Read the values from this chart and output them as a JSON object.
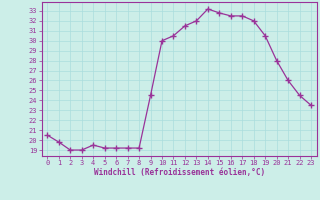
{
  "hours": [
    0,
    1,
    2,
    3,
    4,
    5,
    6,
    7,
    8,
    9,
    10,
    11,
    12,
    13,
    14,
    15,
    16,
    17,
    18,
    19,
    20,
    21,
    22,
    23
  ],
  "values": [
    20.5,
    19.8,
    19.0,
    19.0,
    19.5,
    19.2,
    19.2,
    19.2,
    19.2,
    24.5,
    30.0,
    30.5,
    31.5,
    32.0,
    33.2,
    32.8,
    32.5,
    32.5,
    32.0,
    30.5,
    28.0,
    26.0,
    24.5,
    23.5
  ],
  "line_color": "#993399",
  "marker": "+",
  "marker_size": 4,
  "bg_color": "#cceee8",
  "grid_color": "#aadddd",
  "xlabel": "Windchill (Refroidissement éolien,°C)",
  "ylabel_ticks": [
    19,
    20,
    21,
    22,
    23,
    24,
    25,
    26,
    27,
    28,
    29,
    30,
    31,
    32,
    33
  ],
  "ylim": [
    18.4,
    33.9
  ],
  "xlim": [
    -0.5,
    23.5
  ],
  "tick_color": "#993399",
  "label_color": "#993399",
  "axis_color": "#993399",
  "tick_fontsize": 5,
  "xlabel_fontsize": 5.5
}
